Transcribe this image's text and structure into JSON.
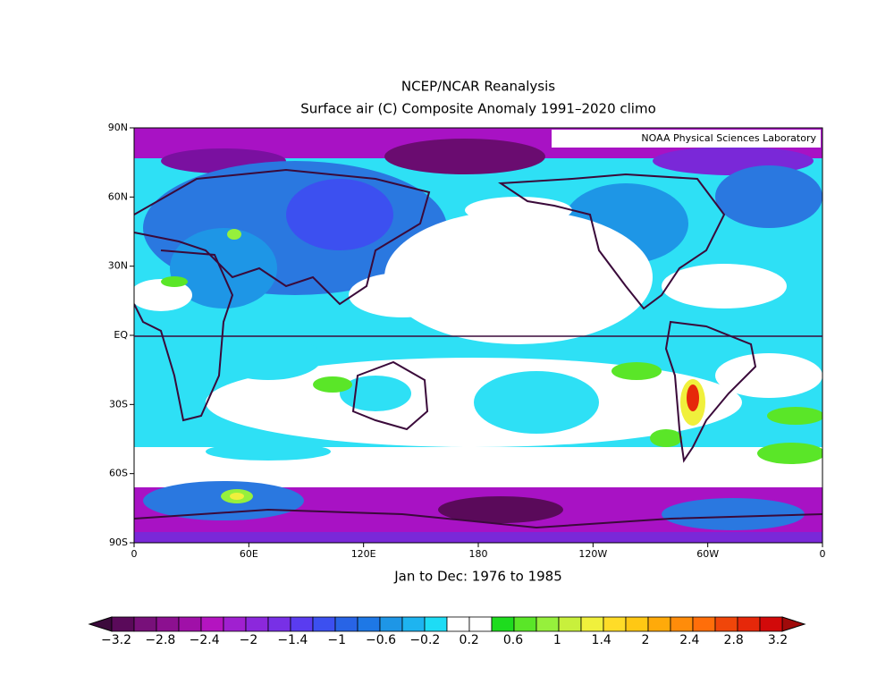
{
  "header": {
    "title": "NCEP/NCAR Reanalysis",
    "subtitle": "Surface air (C) Composite Anomaly 1991–2020 climo",
    "credit": "NOAA Physical Sciences Laboratory"
  },
  "map": {
    "lat_labels": [
      "90N",
      "60N",
      "30N",
      "EQ",
      "30S",
      "60S",
      "90S"
    ],
    "lon_labels": [
      "0",
      "60E",
      "120E",
      "180",
      "120W",
      "60W",
      "0"
    ],
    "period": "Jan to Dec: 1976 to 1985"
  },
  "colorbar": {
    "labels": [
      "−3.2",
      "−2.8",
      "−2.4",
      "−2",
      "−1.4",
      "−1",
      "−0.6",
      "−0.2",
      "0.2",
      "0.6",
      "1",
      "1.4",
      "2",
      "2.4",
      "2.8",
      "3.2"
    ],
    "colors": [
      "#5a0a5a",
      "#78107a",
      "#8c1090",
      "#a010a8",
      "#b414c0",
      "#a020d0",
      "#8c28dc",
      "#7830e6",
      "#5a3cf0",
      "#3c50f0",
      "#2864e6",
      "#1e78e6",
      "#1e96e6",
      "#1eb4f0",
      "#1edcf5",
      "#ffffff",
      "#ffffff",
      "#1edc1e",
      "#5ae628",
      "#96f03c",
      "#c8f03c",
      "#f0f03c",
      "#ffdc28",
      "#ffc814",
      "#ffaa0a",
      "#ff8c0a",
      "#ff6e0a",
      "#f0460a",
      "#e6280a",
      "#d20a0a"
    ],
    "low_color": "#3c0a3c",
    "high_color": "#a00a0a"
  }
}
